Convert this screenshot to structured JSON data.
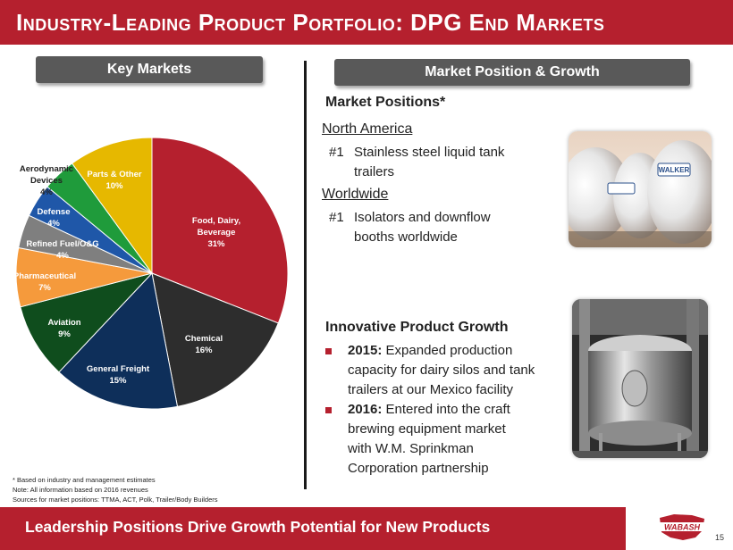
{
  "title": "Industry-Leading Product Portfolio: DPG End Markets",
  "left_header": "Key Markets",
  "right_header": "Market Position & Growth",
  "chart_data": {
    "type": "pie",
    "slices": [
      {
        "label": "Food, Dairy, Beverage",
        "value": 31,
        "value_label": "31%",
        "color": "#b5202e"
      },
      {
        "label": "Chemical",
        "value": 16,
        "value_label": "16%",
        "color": "#2d2d2d"
      },
      {
        "label": "General Freight",
        "value": 15,
        "value_label": "15%",
        "color": "#0e2f5a"
      },
      {
        "label": "Aviation",
        "value": 9,
        "value_label": "9%",
        "color": "#0f4d1d"
      },
      {
        "label": "Pharmaceutical",
        "value": 7,
        "value_label": "7%",
        "color": "#f59a3c"
      },
      {
        "label": "Refined Fuel/O&G",
        "value": 4,
        "value_label": "4%",
        "color": "#7f7f7f"
      },
      {
        "label": "Defense",
        "value": 4,
        "value_label": "4%",
        "color": "#1f57a8"
      },
      {
        "label": "Aerodynamic Devices",
        "value": 4,
        "value_label": "4%",
        "color": "#1f9b3b"
      },
      {
        "label": "Parts & Other",
        "value": 10,
        "value_label": "10%",
        "color": "#e6b800"
      }
    ]
  },
  "notes": [
    "* Based on industry and management estimates",
    "Note: All information based on 2016 revenues",
    "Sources for market positions: TTMA, ACT, Polk, Trailer/Body Builders"
  ],
  "market_positions": {
    "title": "Market Positions*",
    "regions": [
      {
        "name": "North America",
        "rank": "#1",
        "text_line1": "Stainless steel liquid tank",
        "text_line2": "trailers"
      },
      {
        "name": "Worldwide",
        "rank": "#1",
        "text_line1": "Isolators and downflow",
        "text_line2": "booths worldwide"
      }
    ]
  },
  "innovative_growth": {
    "title": "Innovative Product Growth",
    "bullets": [
      {
        "year": "2015:",
        "lines": [
          "Expanded production",
          "capacity for dairy silos and tank",
          "trailers at our Mexico facility"
        ]
      },
      {
        "year": "2016:",
        "lines": [
          "Entered into the craft",
          "brewing equipment market",
          "with W.M. Sprinkman",
          "Corporation partnership"
        ]
      }
    ]
  },
  "footer_banner": "Leadership Positions Drive Growth Potential for New Products",
  "logo_text": "WABASH",
  "tank_brand": "WALKER",
  "page_number": "15"
}
